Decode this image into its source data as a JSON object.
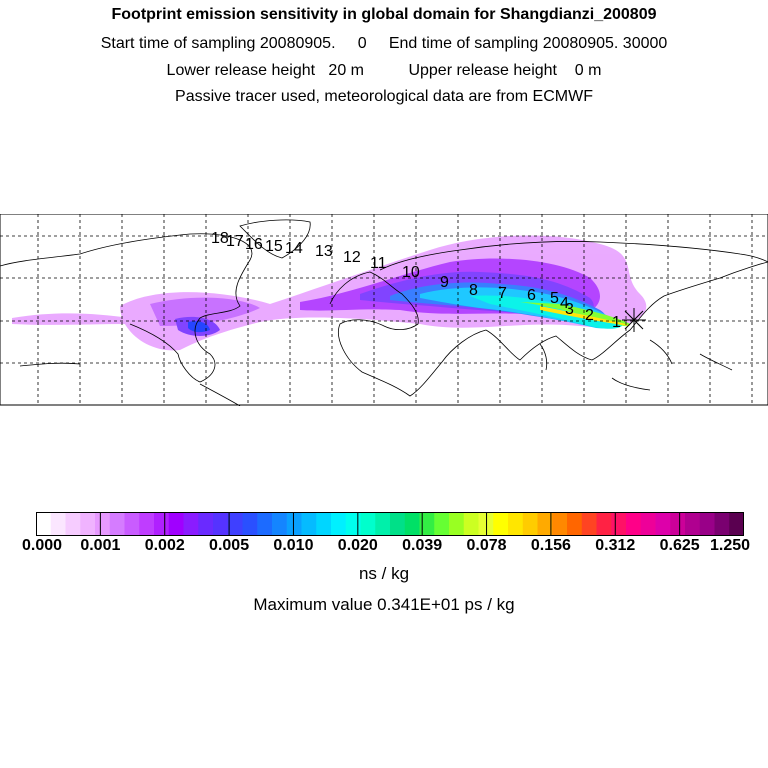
{
  "header": {
    "title": "Footprint emission sensitivity in global domain for Shangdianzi_200809",
    "sampling_line": "Start time of sampling 20080905.     0     End time of sampling 20080905. 30000",
    "release_line": "Lower release height   20 m          Upper release height    0 m",
    "tracer_line": "Passive tracer used, meteorological data are from ECMWF"
  },
  "map": {
    "station_marker": "star-cross-icon",
    "trajectory_labels": [
      "1",
      "2",
      "3",
      "4",
      "5",
      "6",
      "7",
      "8",
      "9",
      "10",
      "11",
      "12",
      "13",
      "14",
      "15",
      "16",
      "17",
      "18"
    ]
  },
  "colorbar": {
    "tick_labels": [
      "0.000",
      "0.001",
      "0.002",
      "0.005",
      "0.010",
      "0.020",
      "0.039",
      "0.078",
      "0.156",
      "0.312",
      "0.625",
      "1.250"
    ],
    "colors": [
      "#ffffff",
      "#fbe6ff",
      "#f6ccff",
      "#f0b3ff",
      "#e799ff",
      "#d57cff",
      "#c95cff",
      "#bf3dff",
      "#b020ff",
      "#a000ff",
      "#8a1cff",
      "#6a2aff",
      "#5533ff",
      "#3f40ff",
      "#2a50ff",
      "#1c6bff",
      "#1485ff",
      "#0aa0ff",
      "#05bbff",
      "#00d6ff",
      "#00f0ff",
      "#00ffee",
      "#00ffcc",
      "#00f0aa",
      "#00e088",
      "#00e066",
      "#33ee44",
      "#66ff33",
      "#99ff22",
      "#ccff22",
      "#e6ff33",
      "#ffff00",
      "#ffe600",
      "#ffcc00",
      "#ffaa00",
      "#ff8800",
      "#ff6600",
      "#ff4422",
      "#ff2244",
      "#ff1166",
      "#ff0088",
      "#ee0099",
      "#dd00aa",
      "#cc0099",
      "#b00090",
      "#990088",
      "#7a0070",
      "#5a0050"
    ],
    "unit": "ns / kg"
  },
  "footer": {
    "max_value": "Maximum value  0.341E+01 ps / kg"
  }
}
